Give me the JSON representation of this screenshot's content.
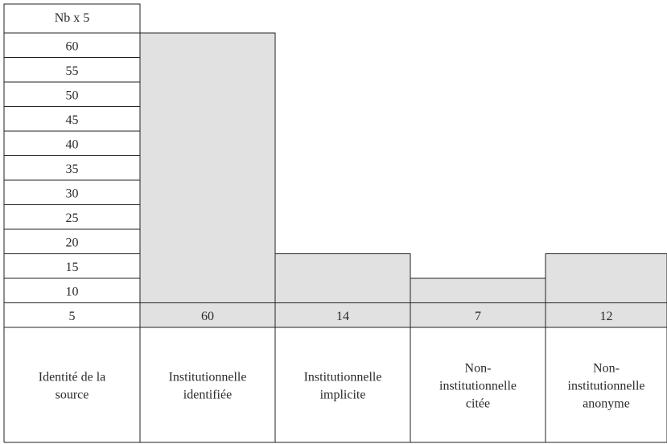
{
  "chart_data": {
    "type": "bar",
    "ylabel": "Nb x 5",
    "yticks": [
      60,
      55,
      50,
      45,
      40,
      35,
      30,
      25,
      20,
      15,
      10,
      5
    ],
    "xlabel": [
      "Identité de la",
      "source"
    ],
    "categories": [
      [
        "Institutionnelle",
        "identifiée"
      ],
      [
        "Institutionnelle",
        "implicite"
      ],
      [
        "Non-",
        "institutionnelle",
        "citée"
      ],
      [
        "Non-",
        "institutionnelle",
        "anonyme"
      ]
    ],
    "values": [
      60,
      14,
      7,
      12
    ],
    "value_labels": [
      "60",
      "14",
      "7",
      "12"
    ],
    "bar_heights_in_rows": [
      12,
      3,
      2,
      3
    ],
    "bar_color": "#e1e1e1",
    "line_color": "#222222"
  }
}
